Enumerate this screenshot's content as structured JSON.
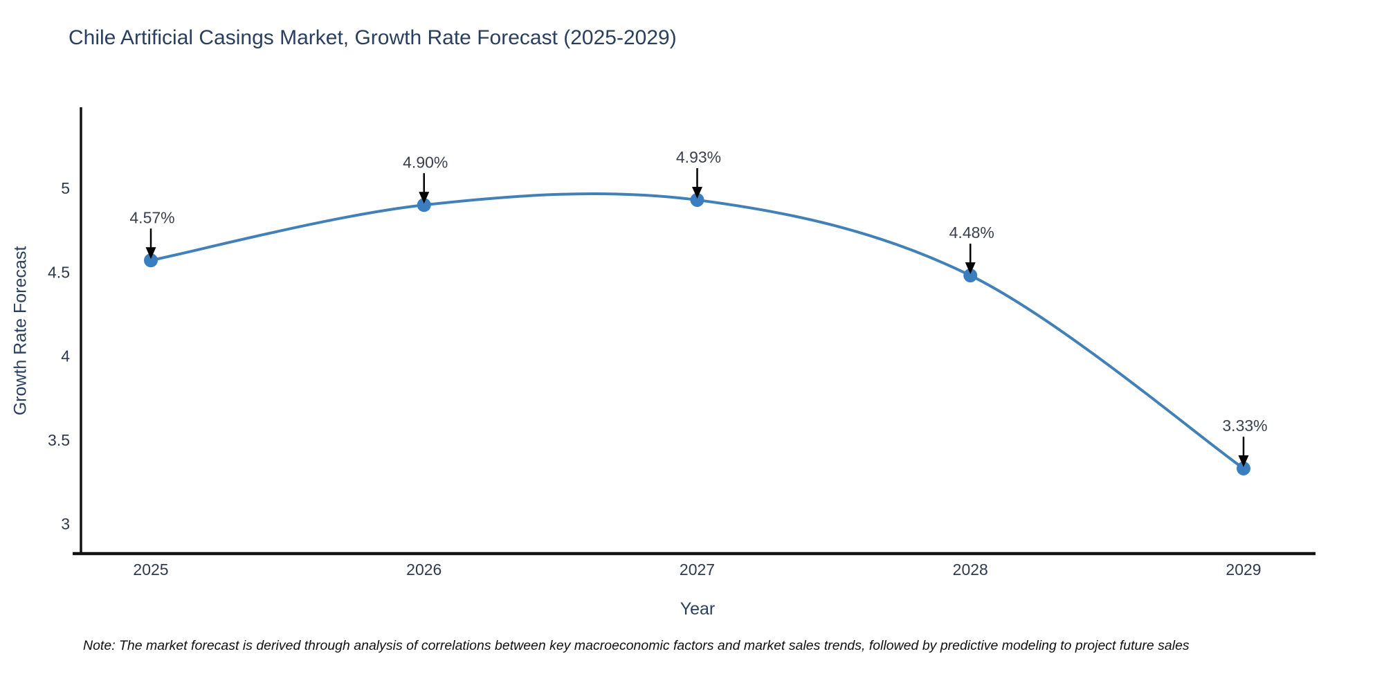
{
  "note": "Note: The market forecast is derived through analysis of correlations between key macroeconomic factors and market sales trends, followed by predictive modeling to project future sales",
  "chart_data": {
    "type": "line",
    "title": "Chile Artificial Casings Market, Growth Rate Forecast (2025-2029)",
    "xlabel": "Year",
    "ylabel": "Growth Rate Forecast",
    "x": [
      2025,
      2026,
      2027,
      2028,
      2029
    ],
    "xtick_labels": [
      "2025",
      "2026",
      "2027",
      "2028",
      "2029"
    ],
    "series": [
      {
        "name": "Growth Rate Forecast",
        "values": [
          4.57,
          4.9,
          4.93,
          4.48,
          3.33
        ]
      }
    ],
    "point_labels": [
      "4.57%",
      "4.90%",
      "4.93%",
      "4.48%",
      "3.33%"
    ],
    "yticks": [
      3,
      3.5,
      4,
      4.5,
      5
    ],
    "ytick_labels": [
      "3",
      "3.5",
      "4",
      "4.5",
      "5"
    ],
    "ylim": [
      2.82,
      5.48
    ],
    "line_shape": "spline",
    "grid": false,
    "legend": "none",
    "colors": {
      "line": "#4181b8",
      "marker": "#3a7ebf",
      "arrow": "#000000",
      "axis_line": "#111111",
      "title_text": "#2a3f5f"
    }
  }
}
